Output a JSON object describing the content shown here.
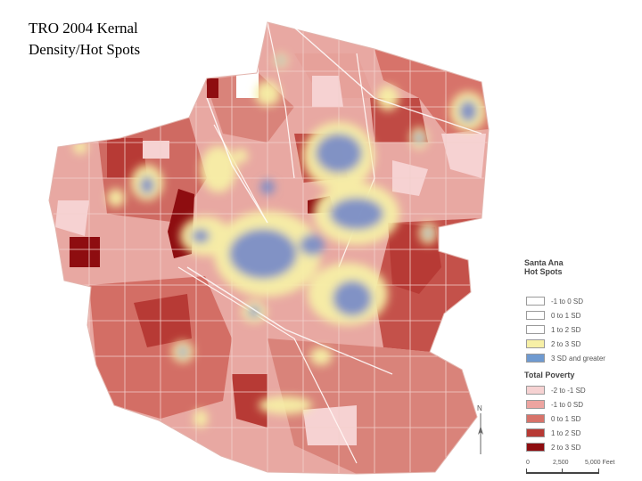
{
  "title": {
    "line1": "TRO 2004 Kernal",
    "line2": "Density/Hot Spots"
  },
  "legend": {
    "hotspots_title_line1": "Santa Ana",
    "hotspots_title_line2": "Hot Spots",
    "hotspots": [
      {
        "label": "-1 to 0 SD",
        "color": "#ffffff"
      },
      {
        "label": "0 to 1 SD",
        "color": "#ffffff"
      },
      {
        "label": "1 to 2 SD",
        "color": "#ffffff"
      },
      {
        "label": "2 to 3 SD",
        "color": "#f7f0a6"
      },
      {
        "label": "3 SD and greater",
        "color": "#6f9ad0"
      }
    ],
    "poverty_title": "Total Poverty",
    "poverty": [
      {
        "label": "-2 to -1 SD",
        "color": "#f6d2d2"
      },
      {
        "label": "-1 to 0 SD",
        "color": "#eda4a0"
      },
      {
        "label": "0 to 1 SD",
        "color": "#d7736a"
      },
      {
        "label": "1 to 2 SD",
        "color": "#b73a35"
      },
      {
        "label": "2 to 3 SD",
        "color": "#8e0d10"
      }
    ]
  },
  "scale": {
    "labels": [
      "0",
      "2,500",
      "5,000 Feet"
    ]
  },
  "north_label": "N"
}
